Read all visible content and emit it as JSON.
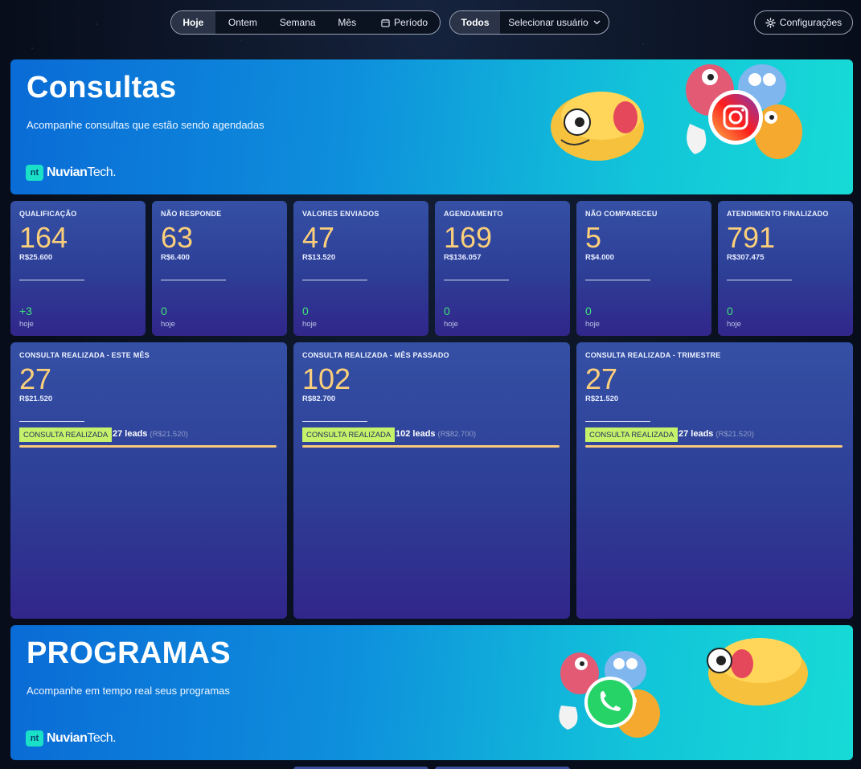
{
  "filters": {
    "periods": [
      "Hoje",
      "Ontem",
      "Semana",
      "Mês",
      "Período"
    ],
    "active_period": "Hoje",
    "user_scope": "Todos",
    "user_select_placeholder": "Selecionar usuário"
  },
  "settings_label": "Configurações",
  "banners": [
    {
      "title": "Consultas",
      "subtitle": "Acompanhe consultas que estão sendo agendadas",
      "logo_mark": "nt",
      "logo_brand": "Nuvian",
      "logo_suffix": "Tech."
    },
    {
      "title": "PROGRAMAS",
      "subtitle": "Acompanhe em tempo real seus programas",
      "logo_mark": "nt",
      "logo_brand": "Nuvian",
      "logo_suffix": "Tech."
    }
  ],
  "stage_cards": [
    {
      "label": "QUALIFICAÇÃO",
      "count": "164",
      "value": "R$25.600",
      "delta": "+3",
      "delta_label": "hoje"
    },
    {
      "label": "NÃO RESPONDE",
      "count": "63",
      "value": "R$6.400",
      "delta": "0",
      "delta_label": "hoje"
    },
    {
      "label": "VALORES ENVIADOS",
      "count": "47",
      "value": "R$13.520",
      "delta": "0",
      "delta_label": "hoje"
    },
    {
      "label": "AGENDAMENTO",
      "count": "169",
      "value": "R$136.057",
      "delta": "0",
      "delta_label": "hoje"
    },
    {
      "label": "NÃO COMPARECEU",
      "count": "5",
      "value": "R$4.000",
      "delta": "0",
      "delta_label": "hoje"
    },
    {
      "label": "ATENDIMENTO FINALIZADO",
      "count": "791",
      "value": "R$307.475",
      "delta": "0",
      "delta_label": "hoje"
    }
  ],
  "period_cards": [
    {
      "label": "CONSULTA REALIZADA - ESTE MÊS",
      "count": "27",
      "value": "R$21.520",
      "tag": "CONSULTA REALIZADA",
      "leads": "27 leads",
      "leads_value": "(R$21.520)",
      "bar_fraction": 1.0
    },
    {
      "label": "CONSULTA REALIZADA - MÊS PASSADO",
      "count": "102",
      "value": "R$82.700",
      "tag": "CONSULTA REALIZADA",
      "leads": "102 leads",
      "leads_value": "(R$82.700)",
      "bar_fraction": 1.0
    },
    {
      "label": "CONSULTA REALIZADA - TRIMESTRE",
      "count": "27",
      "value": "R$21.520",
      "tag": "CONSULTA REALIZADA",
      "leads": "27 leads",
      "leads_value": "(R$21.520)",
      "bar_fraction": 1.0
    }
  ],
  "colors": {
    "accent_number": "#fccf7a",
    "delta_green": "#3ee37a",
    "tag_green": "#c5f26a",
    "banner_start": "#0a6bd6",
    "banner_end": "#17dad6"
  },
  "icons": {
    "period": "calendar-icon",
    "user_select": "chevron-down-icon",
    "settings": "gear-icon",
    "banner1_art": "instagram-icon",
    "banner2_art": "whatsapp-icon"
  }
}
